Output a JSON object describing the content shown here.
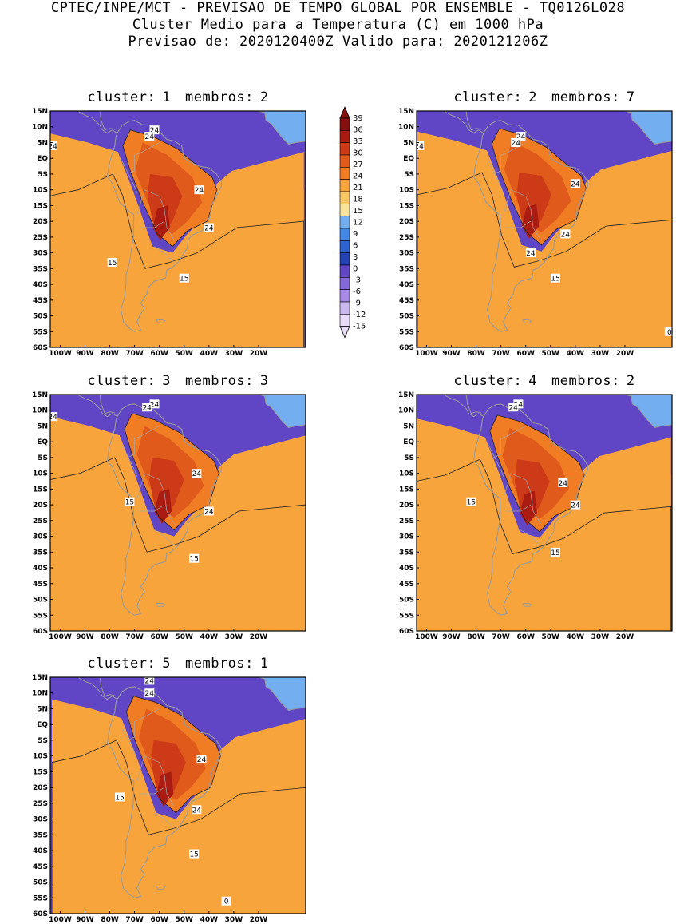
{
  "header": {
    "line1": "CPTEC/INPE/MCT - PREVISAO DE TEMPO GLOBAL POR ENSEMBLE - TQ0126L028",
    "line2": "Cluster Medio para a Temperatura (C) em 1000 hPa",
    "line3": "Previsao de: 2020120400Z   Valido para: 2020121206Z"
  },
  "colors": {
    "levels": [
      "#e8dcf8",
      "#cbb8f0",
      "#a78ae6",
      "#8468d8",
      "#6046c4",
      "#2542b4",
      "#2f64d0",
      "#4488e6",
      "#72aef0",
      "#f8e49a",
      "#f8c864",
      "#f8a43c",
      "#f07c24",
      "#e05a1c",
      "#cc3a18",
      "#aa1c12",
      "#861010"
    ]
  },
  "colorbar": {
    "labels": [
      "39",
      "36",
      "33",
      "30",
      "27",
      "24",
      "21",
      "18",
      "15",
      "12",
      "9",
      "6",
      "3",
      "0",
      "-3",
      "-6",
      "-9",
      "-12",
      "-15"
    ]
  },
  "axes": {
    "lat_labels": [
      "15N",
      "10N",
      "5N",
      "EQ",
      "5S",
      "10S",
      "15S",
      "20S",
      "25S",
      "30S",
      "35S",
      "40S",
      "45S",
      "50S",
      "55S",
      "60S"
    ],
    "lon_labels": [
      "100W",
      "90W",
      "80W",
      "70W",
      "60W",
      "50W",
      "40W",
      "30W",
      "20W"
    ]
  },
  "maps": [
    {
      "cluster_label": "cluster:",
      "cluster": "1",
      "membros_label": "membros:",
      "membros": "2",
      "contour_labels": [
        {
          "text": "24"
        },
        {
          "text": "24"
        },
        {
          "text": "24"
        },
        {
          "text": "24"
        },
        {
          "text": "24"
        },
        {
          "text": "15"
        },
        {
          "text": "15"
        }
      ]
    },
    {
      "cluster_label": "cluster:",
      "cluster": "2",
      "membros_label": "membros:",
      "membros": "7",
      "contour_labels": [
        {
          "text": "24"
        },
        {
          "text": "24"
        },
        {
          "text": "24"
        },
        {
          "text": "24"
        },
        {
          "text": "24"
        },
        {
          "text": "24"
        },
        {
          "text": "15"
        },
        {
          "text": "0"
        }
      ]
    },
    {
      "cluster_label": "cluster:",
      "cluster": "3",
      "membros_label": "membros:",
      "membros": "3",
      "contour_labels": [
        {
          "text": "24"
        },
        {
          "text": "24"
        },
        {
          "text": "24"
        },
        {
          "text": "24"
        },
        {
          "text": "24"
        },
        {
          "text": "15"
        },
        {
          "text": "15"
        }
      ]
    },
    {
      "cluster_label": "cluster:",
      "cluster": "4",
      "membros_label": "membros:",
      "membros": "2",
      "contour_labels": [
        {
          "text": "24"
        },
        {
          "text": "24"
        },
        {
          "text": "24"
        },
        {
          "text": "24"
        },
        {
          "text": "15"
        },
        {
          "text": "15"
        }
      ]
    },
    {
      "cluster_label": "cluster:",
      "cluster": "5",
      "membros_label": "membros:",
      "membros": "1",
      "contour_labels": [
        {
          "text": "24"
        },
        {
          "text": "24"
        },
        {
          "text": "24"
        },
        {
          "text": "24"
        },
        {
          "text": "15"
        },
        {
          "text": "15"
        },
        {
          "text": "0"
        }
      ]
    }
  ]
}
